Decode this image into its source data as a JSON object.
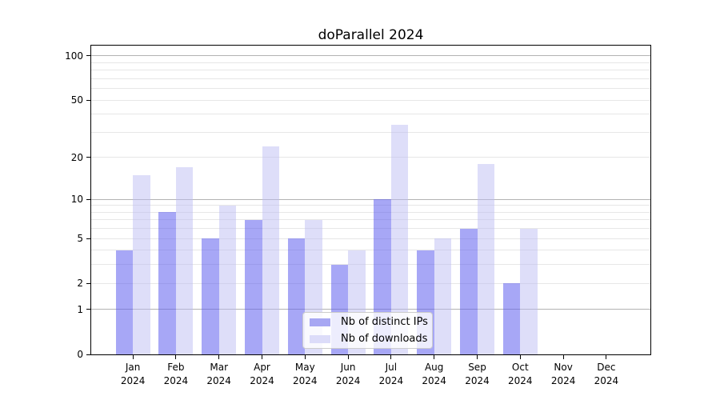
{
  "title": "doParallel 2024",
  "colors": {
    "distinct_ips": "rgba(95,95,238,0.55)",
    "downloads": "rgba(185,185,243,0.48)",
    "distinct_ips_solid": "#a7a7f3",
    "downloads_solid": "#dcdcf9",
    "grid_major": "#b3b3b3",
    "grid_minor": "#e7e7e7",
    "frame": "#000000",
    "text": "#000000"
  },
  "legend": {
    "items": [
      {
        "key": "distinct_ips",
        "label": "Nb of distinct IPs"
      },
      {
        "key": "downloads",
        "label": "Nb of downloads"
      }
    ]
  },
  "y_axis": {
    "tick_labels": [
      "100",
      "50",
      "20",
      "10",
      "5",
      "2",
      "1",
      "0"
    ]
  },
  "x_axis": {
    "months": [
      "Jan",
      "Feb",
      "Mar",
      "Apr",
      "May",
      "Jun",
      "Jul",
      "Aug",
      "Sep",
      "Oct",
      "Nov",
      "Dec"
    ],
    "year": "2024"
  },
  "chart_data": {
    "type": "bar",
    "title": "doParallel 2024",
    "categories": [
      "Jan 2024",
      "Feb 2024",
      "Mar 2024",
      "Apr 2024",
      "May 2024",
      "Jun 2024",
      "Jul 2024",
      "Aug 2024",
      "Sep 2024",
      "Oct 2024",
      "Nov 2024",
      "Dec 2024"
    ],
    "series": [
      {
        "name": "Nb of distinct IPs",
        "values": [
          4,
          8,
          5,
          7,
          5,
          3,
          10,
          4,
          6,
          2,
          0,
          0
        ]
      },
      {
        "name": "Nb of downloads",
        "values": [
          15,
          17,
          9,
          24,
          7,
          4,
          34,
          5,
          18,
          6,
          0,
          0
        ]
      }
    ],
    "y_scale": "log10(1+x)",
    "y_ticks": [
      0,
      1,
      2,
      5,
      10,
      20,
      50,
      100
    ],
    "y_minor_gridlines": [
      3,
      4,
      6,
      7,
      8,
      9,
      30,
      40,
      60,
      70,
      80,
      90
    ],
    "y_major_gridlines": [
      1,
      10,
      100
    ],
    "ylim": [
      0,
      117
    ],
    "grid": true,
    "legend_position": "bottom-center-inside"
  }
}
